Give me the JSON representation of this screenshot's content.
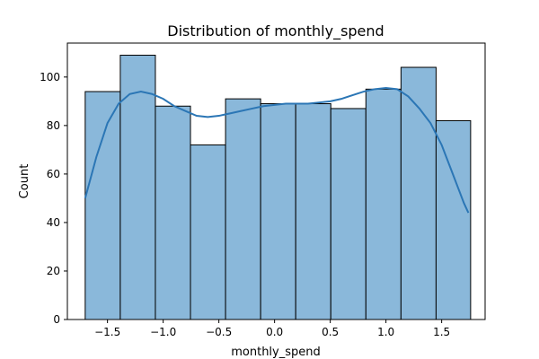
{
  "chart_data": {
    "type": "bar",
    "title": "Distribution of monthly_spend",
    "xlabel": "monthly_spend",
    "ylabel": "Count",
    "xlim": [
      -1.86,
      1.89
    ],
    "ylim": [
      0,
      114
    ],
    "xticks": [
      -1.5,
      -1.0,
      -0.5,
      0.0,
      0.5,
      1.0,
      1.5
    ],
    "xtick_labels": [
      "−1.5",
      "−1.0",
      "−0.5",
      "0.0",
      "0.5",
      "1.0",
      "1.5"
    ],
    "yticks": [
      0,
      20,
      40,
      60,
      80,
      100
    ],
    "ytick_labels": [
      "0",
      "20",
      "40",
      "60",
      "80",
      "100"
    ],
    "grid": false,
    "bins": [
      {
        "x0": -1.7,
        "x1": -1.385,
        "count": 94
      },
      {
        "x0": -1.385,
        "x1": -1.07,
        "count": 109
      },
      {
        "x0": -1.07,
        "x1": -0.755,
        "count": 88
      },
      {
        "x0": -0.755,
        "x1": -0.44,
        "count": 72
      },
      {
        "x0": -0.44,
        "x1": -0.125,
        "count": 91
      },
      {
        "x0": -0.125,
        "x1": 0.19,
        "count": 89
      },
      {
        "x0": 0.19,
        "x1": 0.505,
        "count": 89
      },
      {
        "x0": 0.505,
        "x1": 0.82,
        "count": 87
      },
      {
        "x0": 0.82,
        "x1": 1.135,
        "count": 95
      },
      {
        "x0": 1.135,
        "x1": 1.45,
        "count": 104
      },
      {
        "x0": 1.45,
        "x1": 1.76,
        "count": 82
      }
    ],
    "kde": {
      "x": [
        -1.7,
        -1.6,
        -1.5,
        -1.4,
        -1.3,
        -1.2,
        -1.1,
        -1.0,
        -0.9,
        -0.8,
        -0.7,
        -0.6,
        -0.5,
        -0.4,
        -0.3,
        -0.2,
        -0.1,
        0.0,
        0.1,
        0.2,
        0.3,
        0.4,
        0.5,
        0.6,
        0.7,
        0.8,
        0.9,
        1.0,
        1.1,
        1.2,
        1.3,
        1.4,
        1.5,
        1.6,
        1.7,
        1.74
      ],
      "y": [
        50,
        67,
        81,
        89,
        93,
        94,
        93,
        91,
        88,
        86,
        84,
        83.5,
        84,
        85,
        86,
        87,
        88,
        88.5,
        89,
        89,
        89,
        89.5,
        90,
        91,
        92.5,
        94,
        95,
        95.5,
        95,
        92,
        87,
        81,
        72,
        60,
        48,
        44
      ]
    },
    "colors": {
      "bar_fill": "#8ab8da",
      "bar_edge": "#000000",
      "kde_line": "#2b76b5"
    }
  }
}
